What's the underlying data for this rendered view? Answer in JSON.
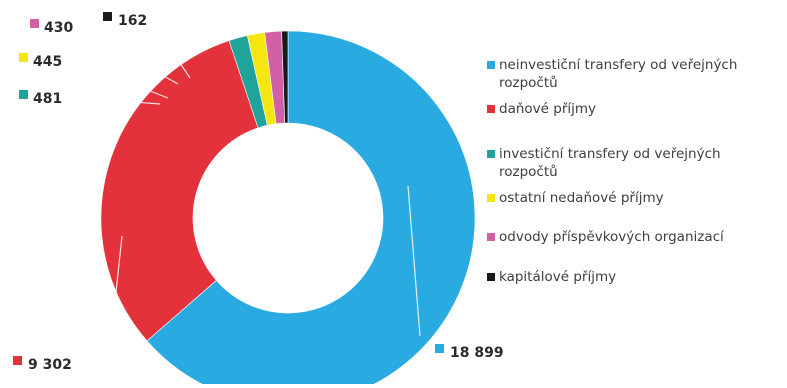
{
  "chart_data": {
    "type": "pie",
    "variant": "donut",
    "title": "",
    "legend_position": "right",
    "series": [
      {
        "label_lines": [
          "neinvestiční transfery od veřejných",
          "rozpočtů"
        ],
        "value": 18899,
        "value_label": "18 899",
        "color": "#29abe2"
      },
      {
        "label_lines": [
          "daňové příjmy"
        ],
        "value": 9302,
        "value_label": "9 302",
        "color": "#e3323b"
      },
      {
        "label_lines": [
          "investiční transfery od veřejných",
          "rozpočtů"
        ],
        "value": 481,
        "value_label": "481",
        "color": "#1fa39a"
      },
      {
        "label_lines": [
          "ostatní nedaňové příjmy"
        ],
        "value": 445,
        "value_label": "445",
        "color": "#f5e612"
      },
      {
        "label_lines": [
          "odvody příspěvkových organizací"
        ],
        "value": 430,
        "value_label": "430",
        "color": "#d260a6"
      },
      {
        "label_lines": [
          "kapitálové příjmy"
        ],
        "value": 162,
        "value_label": "162",
        "color": "#1a1a1a"
      }
    ]
  }
}
